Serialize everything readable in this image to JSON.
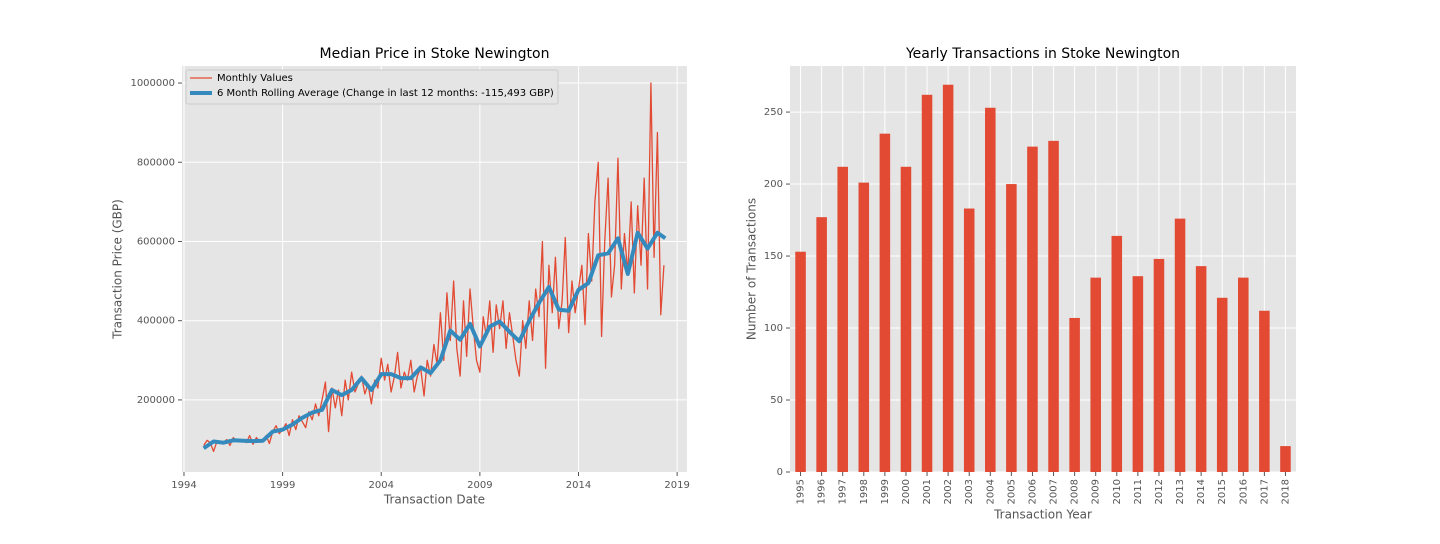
{
  "chart_data": [
    {
      "type": "line",
      "title": "Median Price in Stoke Newington",
      "xlabel": "Transaction Date",
      "ylabel": "Transaction Price (GBP)",
      "xlim": [
        1993.9,
        2019.5
      ],
      "xticks": [
        1994,
        1999,
        2004,
        2009,
        2014,
        2019
      ],
      "ylim": [
        18000,
        1043000
      ],
      "yticks": [
        200000,
        400000,
        600000,
        800000,
        1000000
      ],
      "grid": true,
      "legend": "upper left",
      "series": [
        {
          "name": "Monthly Values",
          "color": "#E24A33",
          "width": 1.3,
          "x": [
            1995,
            1995.17,
            1995.33,
            1995.5,
            1995.67,
            1995.83,
            1996,
            1996.17,
            1996.33,
            1996.5,
            1996.67,
            1996.83,
            1997,
            1997.17,
            1997.33,
            1997.5,
            1997.67,
            1997.83,
            1998,
            1998.17,
            1998.33,
            1998.5,
            1998.67,
            1998.83,
            1999,
            1999.17,
            1999.33,
            1999.5,
            1999.67,
            1999.83,
            2000,
            2000.17,
            2000.33,
            2000.5,
            2000.67,
            2000.83,
            2001,
            2001.17,
            2001.33,
            2001.5,
            2001.67,
            2001.83,
            2002,
            2002.17,
            2002.33,
            2002.5,
            2002.67,
            2002.83,
            2003,
            2003.17,
            2003.33,
            2003.5,
            2003.67,
            2003.83,
            2004,
            2004.17,
            2004.33,
            2004.5,
            2004.67,
            2004.83,
            2005,
            2005.17,
            2005.33,
            2005.5,
            2005.67,
            2005.83,
            2006,
            2006.17,
            2006.33,
            2006.5,
            2006.67,
            2006.83,
            2007,
            2007.17,
            2007.33,
            2007.5,
            2007.67,
            2007.83,
            2008,
            2008.17,
            2008.33,
            2008.5,
            2008.67,
            2008.83,
            2009,
            2009.17,
            2009.33,
            2009.5,
            2009.67,
            2009.83,
            2010,
            2010.17,
            2010.33,
            2010.5,
            2010.67,
            2010.83,
            2011,
            2011.17,
            2011.33,
            2011.5,
            2011.67,
            2011.83,
            2012,
            2012.17,
            2012.33,
            2012.5,
            2012.67,
            2012.83,
            2013,
            2013.17,
            2013.33,
            2013.5,
            2013.67,
            2013.83,
            2014,
            2014.17,
            2014.33,
            2014.5,
            2014.67,
            2014.83,
            2015,
            2015.17,
            2015.33,
            2015.5,
            2015.67,
            2015.83,
            2016,
            2016.17,
            2016.33,
            2016.5,
            2016.67,
            2016.83,
            2017,
            2017.17,
            2017.33,
            2017.5,
            2017.67,
            2017.83,
            2018,
            2018.17,
            2018.33
          ],
          "values": [
            85000,
            98000,
            92000,
            70000,
            95000,
            90000,
            92000,
            100000,
            85000,
            105000,
            95000,
            98000,
            100000,
            92000,
            110000,
            88000,
            105000,
            95000,
            98000,
            110000,
            90000,
            120000,
            135000,
            115000,
            125000,
            140000,
            110000,
            150000,
            125000,
            160000,
            145000,
            130000,
            170000,
            150000,
            190000,
            160000,
            200000,
            245000,
            120000,
            230000,
            180000,
            225000,
            160000,
            250000,
            200000,
            270000,
            220000,
            240000,
            260000,
            215000,
            240000,
            190000,
            250000,
            230000,
            305000,
            250000,
            290000,
            220000,
            260000,
            320000,
            230000,
            270000,
            250000,
            300000,
            220000,
            260000,
            280000,
            210000,
            300000,
            260000,
            340000,
            290000,
            420000,
            300000,
            470000,
            350000,
            500000,
            330000,
            260000,
            450000,
            310000,
            480000,
            380000,
            300000,
            270000,
            410000,
            360000,
            450000,
            320000,
            440000,
            380000,
            450000,
            330000,
            420000,
            360000,
            300000,
            260000,
            400000,
            330000,
            450000,
            350000,
            480000,
            410000,
            600000,
            280000,
            540000,
            420000,
            560000,
            380000,
            450000,
            610000,
            370000,
            500000,
            420000,
            480000,
            540000,
            390000,
            620000,
            500000,
            700000,
            800000,
            360000,
            600000,
            760000,
            460000,
            540000,
            810000,
            480000,
            620000,
            520000,
            700000,
            470000,
            690000,
            540000,
            760000,
            480000,
            1000000,
            560000,
            875000,
            415000,
            540000
          ]
        },
        {
          "name": "6 Month Rolling Average (Change in last 12 months: -115,493 GBP)",
          "color": "#348ABD",
          "width": 4,
          "x": [
            1995,
            1995.5,
            1996,
            1996.5,
            1997,
            1997.5,
            1998,
            1998.5,
            1999,
            1999.5,
            2000,
            2000.5,
            2001,
            2001.5,
            2002,
            2002.5,
            2003,
            2003.5,
            2004,
            2004.5,
            2005,
            2005.5,
            2006,
            2006.5,
            2007,
            2007.5,
            2008,
            2008.5,
            2009,
            2009.5,
            2010,
            2010.5,
            2011,
            2011.5,
            2012,
            2012.5,
            2013,
            2013.5,
            2014,
            2014.5,
            2015,
            2015.5,
            2016,
            2016.5,
            2017,
            2017.5,
            2018,
            2018.4
          ],
          "values": [
            78000,
            95000,
            92000,
            98000,
            97000,
            96000,
            97000,
            120000,
            125000,
            138000,
            155000,
            168000,
            175000,
            225000,
            212000,
            225000,
            255000,
            225000,
            265000,
            265000,
            255000,
            255000,
            282000,
            268000,
            300000,
            375000,
            352000,
            392000,
            335000,
            385000,
            398000,
            372000,
            348000,
            400000,
            445000,
            485000,
            428000,
            425000,
            478000,
            495000,
            565000,
            570000,
            608000,
            518000,
            622000,
            582000,
            622000,
            608000
          ]
        }
      ]
    },
    {
      "type": "bar",
      "title": "Yearly Transactions in Stoke Newington",
      "xlabel": "Transaction Year",
      "ylabel": "Number of Transactions",
      "categories": [
        "1995",
        "1996",
        "1997",
        "1998",
        "1999",
        "2000",
        "2001",
        "2002",
        "2003",
        "2004",
        "2005",
        "2006",
        "2007",
        "2008",
        "2009",
        "2010",
        "2011",
        "2012",
        "2013",
        "2014",
        "2015",
        "2016",
        "2017",
        "2018"
      ],
      "values": [
        153,
        177,
        212,
        201,
        235,
        212,
        262,
        269,
        183,
        253,
        200,
        226,
        230,
        107,
        135,
        164,
        136,
        148,
        176,
        143,
        121,
        135,
        112,
        18
      ],
      "color": "#E24A33",
      "ylim": [
        0,
        282
      ],
      "yticks": [
        0,
        50,
        100,
        150,
        200,
        250
      ],
      "grid": true
    }
  ]
}
